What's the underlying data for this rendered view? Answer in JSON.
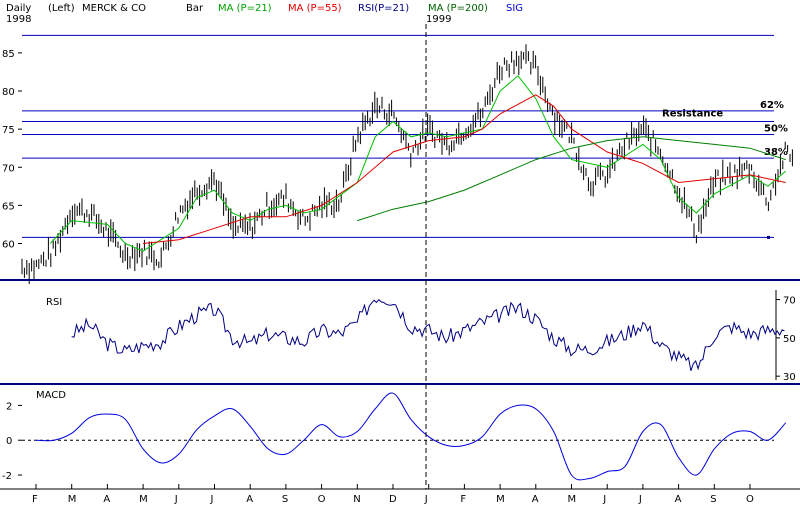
{
  "header": {
    "period": "Daily",
    "axis_side": "(Left)",
    "ticker": "MERCK & CO",
    "chart_style": "Bar",
    "year_left": "1998",
    "year_right": "1999",
    "legend": [
      {
        "label": "MA (P=21)",
        "color": "#00a000"
      },
      {
        "label": "MA (P=55)",
        "color": "#e00000"
      },
      {
        "label": "RSI(P=21)",
        "color": "#000080"
      },
      {
        "label": "MA (P=200)",
        "color": "#006000"
      },
      {
        "label": "SIG",
        "color": "#0000e0"
      }
    ]
  },
  "colors": {
    "price_bars": "#000000",
    "ma21": "#00c000",
    "ma55": "#e00000",
    "ma200": "#008000",
    "support_resistance": "#0000c0",
    "rsi": "#000080",
    "macd": "#0000e0",
    "separator": "#000080"
  },
  "months": [
    "F",
    "M",
    "A",
    "M",
    "J",
    "J",
    "A",
    "S",
    "O",
    "N",
    "D",
    "J",
    "F",
    "M",
    "A",
    "M",
    "J",
    "J",
    "A",
    "S",
    "O"
  ],
  "chart_data": [
    {
      "type": "bar",
      "title": "MERCK & CO",
      "ylabel": "",
      "ylim": [
        56,
        88
      ],
      "yticks": [
        60,
        65,
        70,
        75,
        80,
        85
      ],
      "price_anchor_points": [
        [
          0,
          57
        ],
        [
          0.5,
          59
        ],
        [
          1,
          64.5
        ],
        [
          1.5,
          64
        ],
        [
          2,
          61.5
        ],
        [
          2.5,
          58.5
        ],
        [
          3,
          59
        ],
        [
          3.5,
          58
        ],
        [
          4,
          64
        ],
        [
          4.5,
          67
        ],
        [
          5,
          68.5
        ],
        [
          5.5,
          62
        ],
        [
          6,
          62
        ],
        [
          6.5,
          65
        ],
        [
          7,
          66
        ],
        [
          7.5,
          63
        ],
        [
          8,
          65
        ],
        [
          8.5,
          65.5
        ],
        [
          9,
          74
        ],
        [
          9.5,
          78
        ],
        [
          10,
          77
        ],
        [
          10.5,
          72
        ],
        [
          11,
          75
        ],
        [
          11.5,
          73
        ],
        [
          12,
          75
        ],
        [
          12.5,
          77
        ],
        [
          13,
          83
        ],
        [
          13.5,
          84.5
        ],
        [
          14,
          83
        ],
        [
          14.5,
          77
        ],
        [
          15,
          74
        ],
        [
          15.5,
          68
        ],
        [
          16,
          69
        ],
        [
          16.5,
          73
        ],
        [
          17,
          75
        ],
        [
          17.5,
          72
        ],
        [
          18,
          67
        ],
        [
          18.5,
          61.5
        ],
        [
          19,
          68
        ],
        [
          19.5,
          69
        ],
        [
          20,
          70
        ],
        [
          20.5,
          65.5
        ],
        [
          21,
          72
        ],
        [
          21.2,
          71
        ]
      ],
      "moving_averages": [
        {
          "name": "MA (P=21)",
          "color": "#00c000",
          "points": [
            [
              0.4,
              60
            ],
            [
              1,
              63
            ],
            [
              2,
              62.5
            ],
            [
              2.5,
              60
            ],
            [
              3,
              59
            ],
            [
              4,
              62
            ],
            [
              4.5,
              66
            ],
            [
              5,
              67
            ],
            [
              5.5,
              64
            ],
            [
              6,
              63
            ],
            [
              6.5,
              64.5
            ],
            [
              7,
              65
            ],
            [
              7.5,
              64
            ],
            [
              8,
              64.5
            ],
            [
              9,
              68
            ],
            [
              9.5,
              74
            ],
            [
              10,
              76
            ],
            [
              10.5,
              74
            ],
            [
              11,
              74.5
            ],
            [
              11.5,
              74
            ],
            [
              12,
              74.5
            ],
            [
              12.5,
              75
            ],
            [
              13,
              80
            ],
            [
              13.5,
              82
            ],
            [
              14,
              79
            ],
            [
              14.5,
              74
            ],
            [
              15,
              71
            ],
            [
              16,
              70
            ],
            [
              17,
              73
            ],
            [
              17.5,
              71
            ],
            [
              18,
              66
            ],
            [
              18.5,
              64
            ],
            [
              19,
              66.5
            ],
            [
              20,
              69
            ],
            [
              20.5,
              67.5
            ],
            [
              21,
              69.5
            ]
          ]
        },
        {
          "name": "MA (P=55)",
          "color": "#e00000",
          "points": [
            [
              3,
              60
            ],
            [
              4,
              60.5
            ],
            [
              5,
              62
            ],
            [
              6,
              63.5
            ],
            [
              7,
              63.5
            ],
            [
              8,
              65
            ],
            [
              9,
              68
            ],
            [
              10,
              72
            ],
            [
              11,
              73.5
            ],
            [
              12,
              74
            ],
            [
              12.5,
              75
            ],
            [
              13,
              77
            ],
            [
              14,
              79.5
            ],
            [
              14.5,
              78
            ],
            [
              15,
              75
            ],
            [
              16,
              72
            ],
            [
              17,
              70.5
            ],
            [
              18,
              68
            ],
            [
              19,
              68.5
            ],
            [
              20,
              69
            ],
            [
              21,
              68
            ]
          ]
        },
        {
          "name": "MA (P=200)",
          "color": "#008000",
          "points": [
            [
              9,
              63
            ],
            [
              10,
              64.5
            ],
            [
              11,
              65.5
            ],
            [
              12,
              67
            ],
            [
              13,
              69
            ],
            [
              14,
              71
            ],
            [
              15,
              72.5
            ],
            [
              16,
              73.5
            ],
            [
              17,
              74
            ],
            [
              18,
              73.5
            ],
            [
              19,
              73
            ],
            [
              20,
              72.5
            ],
            [
              21,
              71
            ]
          ]
        }
      ],
      "horizontal_levels": [
        {
          "value": 77.4,
          "label": "62%"
        },
        {
          "value": 76,
          "label": "Resistance"
        },
        {
          "value": 74.3,
          "label": "50%"
        },
        {
          "value": 71.2,
          "label": "38%"
        },
        {
          "value": 60.8,
          "label": ""
        },
        {
          "value": 87.3,
          "label": ""
        }
      ]
    },
    {
      "type": "line",
      "title": "RSI",
      "ylim": [
        28,
        75
      ],
      "yticks": [
        30,
        50,
        70
      ],
      "series": [
        {
          "name": "RSI",
          "color": "#000080",
          "points": [
            [
              1,
              52
            ],
            [
              1.5,
              57
            ],
            [
              2,
              47
            ],
            [
              2.5,
              43
            ],
            [
              3,
              46
            ],
            [
              3.5,
              48
            ],
            [
              4,
              56
            ],
            [
              4.5,
              62
            ],
            [
              5,
              65
            ],
            [
              5.5,
              50
            ],
            [
              6,
              47
            ],
            [
              6.5,
              52
            ],
            [
              7,
              50
            ],
            [
              7.5,
              48
            ],
            [
              8,
              54
            ],
            [
              8.5,
              52
            ],
            [
              9,
              58
            ],
            [
              9.5,
              72
            ],
            [
              10,
              70
            ],
            [
              10.5,
              56
            ],
            [
              11,
              54
            ],
            [
              11.5,
              50
            ],
            [
              12,
              54
            ],
            [
              12.5,
              58
            ],
            [
              13,
              62
            ],
            [
              13.5,
              66
            ],
            [
              14,
              60
            ],
            [
              14.5,
              50
            ],
            [
              15,
              44
            ],
            [
              15.5,
              44
            ],
            [
              16,
              48
            ],
            [
              16.5,
              52
            ],
            [
              17,
              58
            ],
            [
              17.5,
              46
            ],
            [
              18,
              40
            ],
            [
              18.5,
              34
            ],
            [
              19,
              52
            ],
            [
              19.5,
              56
            ],
            [
              20,
              52
            ],
            [
              20.5,
              54
            ],
            [
              21,
              55
            ]
          ]
        }
      ]
    },
    {
      "type": "line",
      "title": "MACD",
      "ylim": [
        -2.4,
        3
      ],
      "yticks": [
        -2,
        0,
        2
      ],
      "series": [
        {
          "name": "MACD",
          "color": "#0000e0",
          "points": [
            [
              0,
              0
            ],
            [
              0.5,
              0
            ],
            [
              1,
              0.4
            ],
            [
              1.5,
              1.3
            ],
            [
              2,
              1.5
            ],
            [
              2.5,
              1.2
            ],
            [
              3,
              -0.5
            ],
            [
              3.5,
              -1.3
            ],
            [
              4,
              -0.8
            ],
            [
              4.5,
              0.6
            ],
            [
              5,
              1.4
            ],
            [
              5.5,
              1.8
            ],
            [
              6,
              0.8
            ],
            [
              6.5,
              -0.5
            ],
            [
              7,
              -0.8
            ],
            [
              7.5,
              0
            ],
            [
              8,
              0.9
            ],
            [
              8.5,
              0.2
            ],
            [
              9,
              0.5
            ],
            [
              9.5,
              1.8
            ],
            [
              10,
              2.7
            ],
            [
              10.5,
              1.2
            ],
            [
              11,
              0.2
            ],
            [
              11.5,
              -0.3
            ],
            [
              12,
              -0.3
            ],
            [
              12.5,
              0.2
            ],
            [
              13,
              1.5
            ],
            [
              13.5,
              2.0
            ],
            [
              14,
              1.8
            ],
            [
              14.5,
              0.5
            ],
            [
              15,
              -2.0
            ],
            [
              15.5,
              -2.2
            ],
            [
              16,
              -1.8
            ],
            [
              16.5,
              -1.5
            ],
            [
              17,
              0.5
            ],
            [
              17.5,
              0.9
            ],
            [
              18,
              -1.0
            ],
            [
              18.5,
              -2.0
            ],
            [
              19,
              -0.5
            ],
            [
              19.5,
              0.4
            ],
            [
              20,
              0.5
            ],
            [
              20.5,
              0
            ],
            [
              21,
              1.0
            ]
          ]
        }
      ]
    }
  ]
}
